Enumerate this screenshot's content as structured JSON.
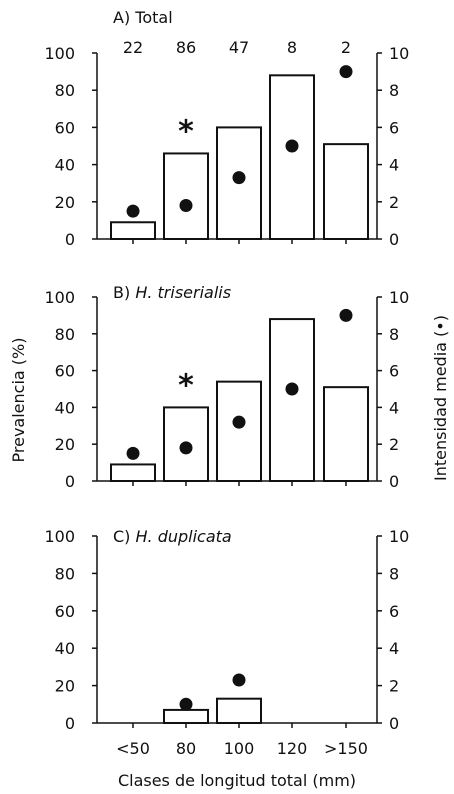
{
  "chart_data": [
    {
      "type": "bar",
      "panel_label": "A) Total",
      "panel_label_italic": false,
      "categories": [
        "<50",
        "80",
        "100",
        "120",
        ">150"
      ],
      "sample_sizes": [
        "22",
        "86",
        "47",
        "8",
        "2"
      ],
      "series": [
        {
          "name": "",
          "kind": "bar",
          "axis": "left",
          "values": [
            9,
            46,
            60,
            88,
            51
          ]
        },
        {
          "name": "",
          "kind": "point",
          "axis": "right",
          "values": [
            1.5,
            1.8,
            3.3,
            5.0,
            9.0
          ]
        }
      ],
      "significance_marker": {
        "category": "80",
        "symbol": "*"
      },
      "ylim_left": [
        0,
        100
      ],
      "ylim_right": [
        0,
        10
      ]
    },
    {
      "type": "bar",
      "panel_label": "B) ",
      "panel_label_italic_part": "H. triserialis",
      "categories": [
        "<50",
        "80",
        "100",
        "120",
        ">150"
      ],
      "series": [
        {
          "name": "",
          "kind": "bar",
          "axis": "left",
          "values": [
            9,
            40,
            54,
            88,
            51
          ]
        },
        {
          "name": "",
          "kind": "point",
          "axis": "right",
          "values": [
            1.5,
            1.8,
            3.2,
            5.0,
            9.0
          ]
        }
      ],
      "significance_marker": {
        "category": "80",
        "symbol": "*"
      },
      "ylim_left": [
        0,
        100
      ],
      "ylim_right": [
        0,
        10
      ]
    },
    {
      "type": "bar",
      "panel_label": "C) ",
      "panel_label_italic_part": "H. duplicata",
      "categories": [
        "<50",
        "80",
        "100",
        "120",
        ">150"
      ],
      "series": [
        {
          "name": "",
          "kind": "bar",
          "axis": "left",
          "values": [
            0,
            7,
            13,
            0,
            0
          ]
        },
        {
          "name": "",
          "kind": "point",
          "axis": "right",
          "values": [
            null,
            1.0,
            2.3,
            null,
            null
          ]
        }
      ],
      "ylim_left": [
        0,
        100
      ],
      "ylim_right": [
        0,
        10
      ]
    }
  ],
  "left_ticks": [
    "0",
    "20",
    "40",
    "60",
    "80",
    "100"
  ],
  "right_ticks": [
    "0",
    "2",
    "4",
    "6",
    "8",
    "10"
  ],
  "ylabel_left": "Prevalencia (%)",
  "ylabel_right": "Intensidad media (•)",
  "xlabel": "Clases de longitud total (mm)"
}
